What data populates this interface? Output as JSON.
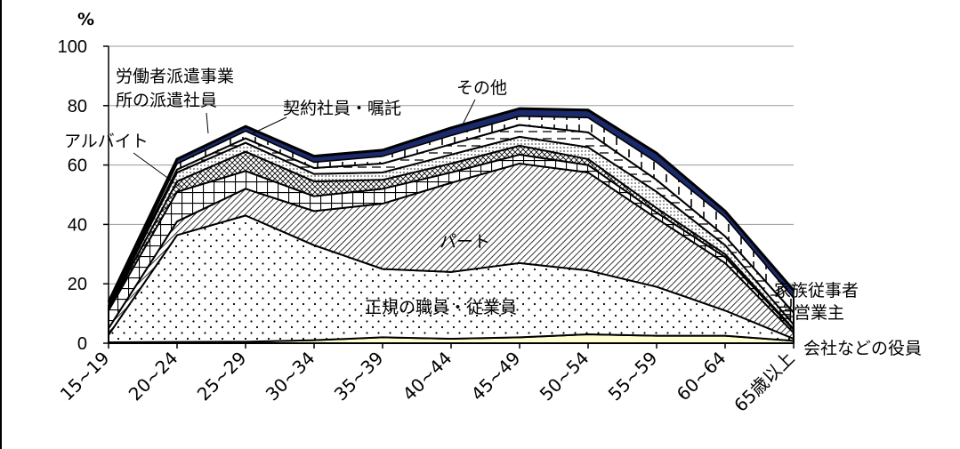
{
  "chart_data": {
    "type": "area",
    "stacked": true,
    "unit_label": "%",
    "title": "",
    "xlabel": "",
    "ylabel": "",
    "ylim": [
      0,
      100
    ],
    "yticks": [
      0,
      20,
      40,
      60,
      80,
      100
    ],
    "grid": true,
    "categories": [
      "15~19",
      "20~24",
      "25~29",
      "30~34",
      "35~39",
      "40~44",
      "45~49",
      "50~54",
      "55~59",
      "60~64",
      "65歳以上"
    ],
    "series": [
      {
        "name": "会社などの役員",
        "values": [
          0.3,
          0.4,
          0.5,
          1,
          2,
          1.5,
          2,
          3,
          2.5,
          2.5,
          0.8
        ]
      },
      {
        "name": "正規の職員・従業員",
        "values": [
          2.5,
          36,
          42.5,
          32,
          23,
          22.5,
          25,
          21.5,
          16.5,
          8.5,
          0.7
        ]
      },
      {
        "name": "パート",
        "values": [
          2.2,
          4.6,
          9,
          11.5,
          22,
          30,
          33.5,
          33,
          23,
          16,
          2
        ]
      },
      {
        "name": "アルバイト",
        "values": [
          6,
          10,
          6,
          5,
          5,
          3.5,
          3,
          2.5,
          2,
          2,
          1
        ]
      },
      {
        "name": "労働者派遣事業所の派遣社員",
        "values": [
          0.5,
          3.5,
          6.5,
          5,
          3,
          3,
          3,
          2,
          1.5,
          1,
          0.3
        ]
      },
      {
        "name": "契約社員・嘱託",
        "values": [
          0.5,
          3,
          3,
          2.5,
          2.5,
          3,
          3,
          4,
          5.5,
          3,
          1.5
        ]
      },
      {
        "name": "自営業主",
        "values": [
          0.3,
          1,
          1.5,
          2,
          3,
          3.5,
          4,
          5,
          4,
          3,
          4
        ]
      },
      {
        "name": "家族従事者",
        "values": [
          0.3,
          2,
          2.5,
          2,
          2.5,
          3,
          3,
          5,
          6,
          6.5,
          5
        ]
      },
      {
        "name": "その他",
        "values": [
          1.3,
          1.5,
          1.5,
          2,
          2,
          2.5,
          2.5,
          2.5,
          3,
          2,
          2.5
        ]
      }
    ],
    "colors": {
      "その他": "#1a2a6c",
      "会社などの役員": "#ffffd0"
    }
  }
}
